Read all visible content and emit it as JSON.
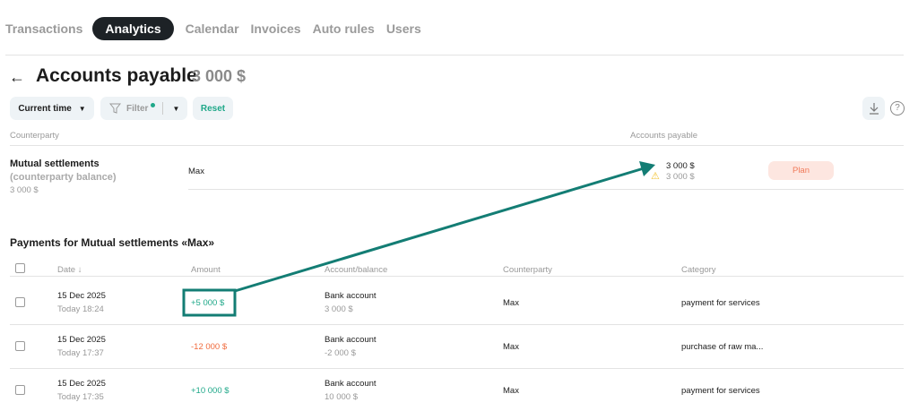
{
  "tabs": [
    "Transactions",
    "Analytics",
    "Calendar",
    "Invoices",
    "Auto rules",
    "Users"
  ],
  "active_tab": "Analytics",
  "header": {
    "title": "Accounts payable",
    "total": "3 000 $"
  },
  "toolbar": {
    "period": "Current time",
    "filter": "Filter",
    "reset": "Reset"
  },
  "summary": {
    "col_counterparty": "Counterparty",
    "col_payable": "Accounts payable",
    "row": {
      "title": "Mutual settlements",
      "subtitle": "(counterparty balance)",
      "balance": "3 000 $",
      "counterparty": "Max",
      "amount": "3 000 $",
      "planned": "3 000 $",
      "plan_label": "Plan"
    }
  },
  "payments": {
    "heading": "Payments for Mutual settlements «Max»",
    "columns": [
      "Date",
      "Amount",
      "Account/balance",
      "Counterparty",
      "Category"
    ],
    "rows": [
      {
        "date": "15 Dec 2025",
        "time": "Today 18:24",
        "amount": "+5 000 $",
        "sign": "in",
        "account": "Bank account",
        "balance": "3 000 $",
        "counterparty": "Max",
        "category": "payment for services"
      },
      {
        "date": "15 Dec 2025",
        "time": "Today 17:37",
        "amount": "-12 000 $",
        "sign": "out",
        "account": "Bank account",
        "balance": "-2 000 $",
        "counterparty": "Max",
        "category": "purchase of raw ma..."
      },
      {
        "date": "15 Dec 2025",
        "time": "Today 17:35",
        "amount": "+10 000 $",
        "sign": "in",
        "account": "Bank account",
        "balance": "10 000 $",
        "counterparty": "Max",
        "category": "payment for services"
      }
    ]
  },
  "colors": {
    "accent": "#1fa889",
    "negative": "#f06a3c",
    "annotation": "#137d74",
    "plan_bg": "#fde6e0"
  }
}
